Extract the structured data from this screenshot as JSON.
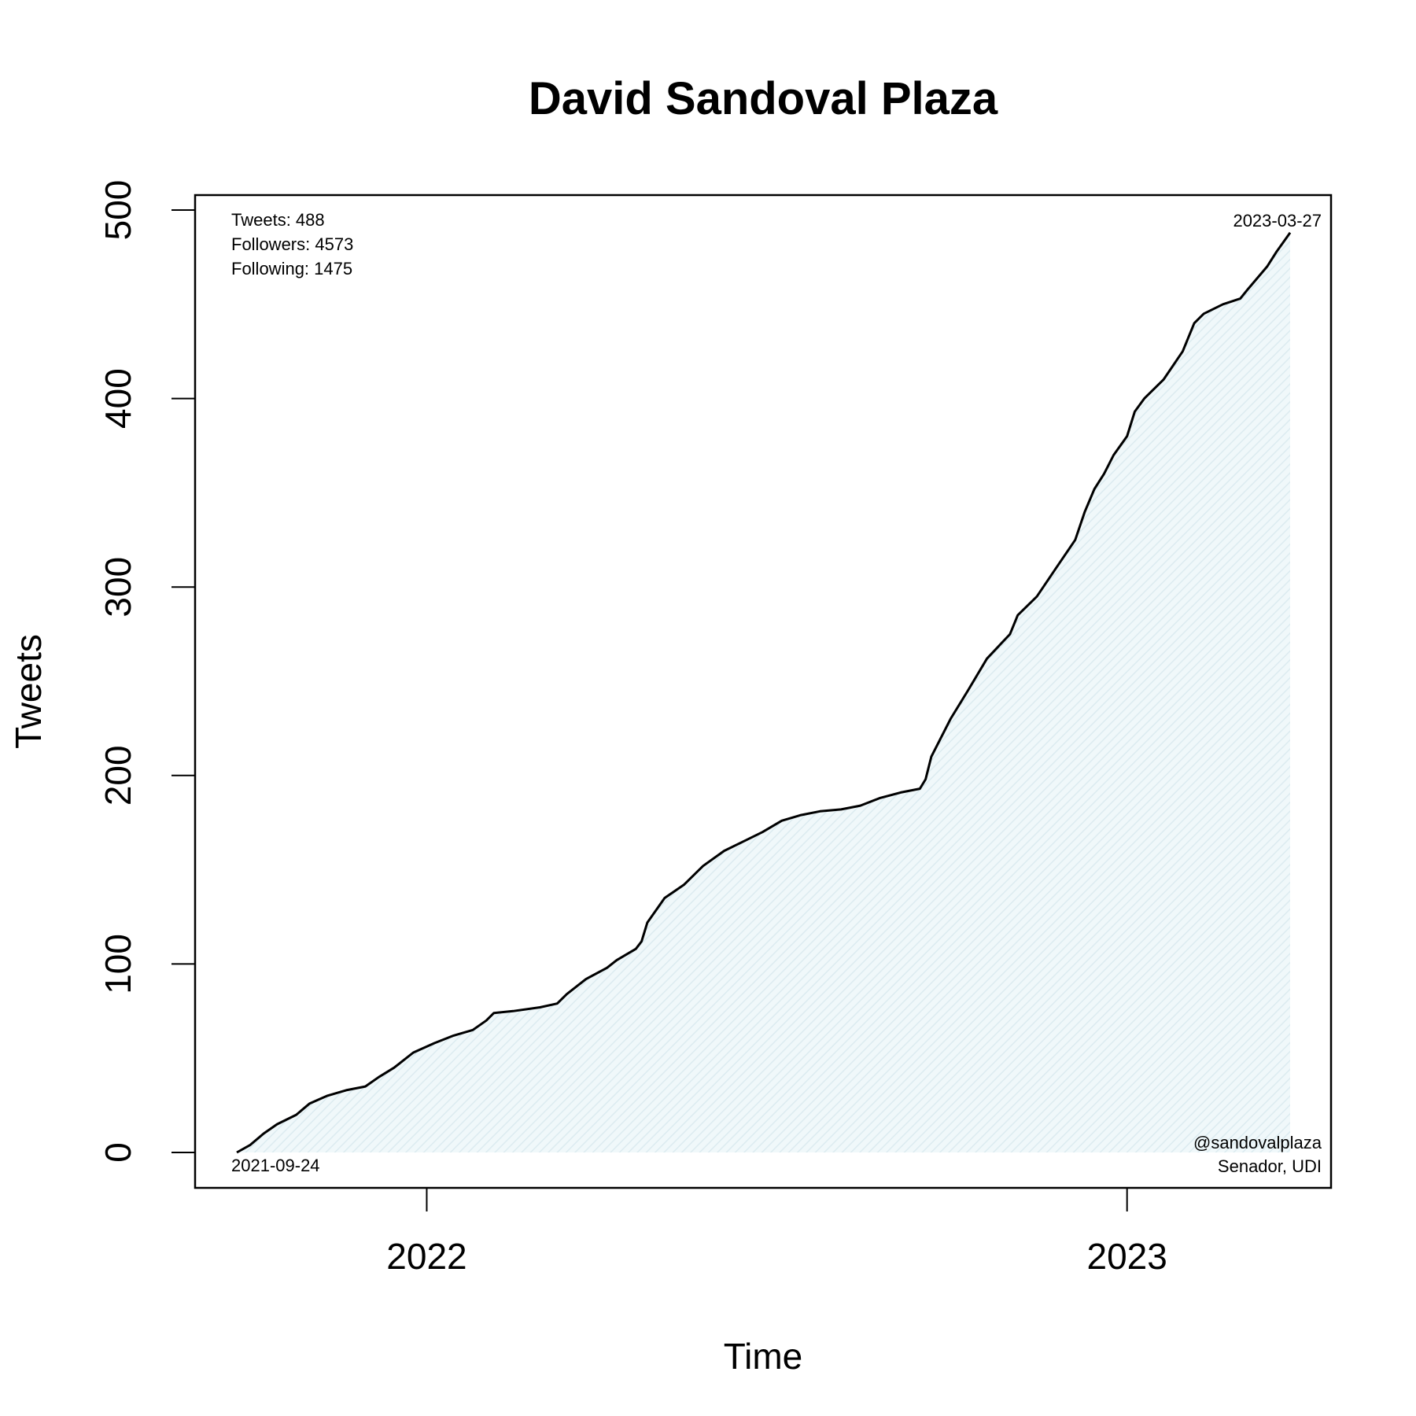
{
  "chart_data": {
    "type": "area",
    "title": "David Sandoval Plaza",
    "xlabel": "Time",
    "ylabel": "Tweets",
    "x_range": [
      "2021-09-24",
      "2023-03-27"
    ],
    "ylim": [
      0,
      500
    ],
    "y_ticks": [
      0,
      100,
      200,
      300,
      400,
      500
    ],
    "x_ticks": [
      {
        "label": "2022",
        "date": "2022-01-01"
      },
      {
        "label": "2023",
        "date": "2023-01-01"
      }
    ],
    "grid": false,
    "colors": {
      "line": "#000000",
      "fill": "#f0f8fa",
      "hatch": "#dcebf0"
    },
    "series": [
      {
        "points": [
          [
            "2021-09-24",
            0
          ],
          [
            "2021-10-01",
            4
          ],
          [
            "2021-10-08",
            10
          ],
          [
            "2021-10-15",
            15
          ],
          [
            "2021-10-25",
            20
          ],
          [
            "2021-11-01",
            26
          ],
          [
            "2021-11-10",
            30
          ],
          [
            "2021-11-20",
            33
          ],
          [
            "2021-11-30",
            35
          ],
          [
            "2021-12-07",
            40
          ],
          [
            "2021-12-15",
            45
          ],
          [
            "2021-12-25",
            53
          ],
          [
            "2022-01-05",
            58
          ],
          [
            "2022-01-15",
            62
          ],
          [
            "2022-01-25",
            65
          ],
          [
            "2022-02-01",
            70
          ],
          [
            "2022-02-05",
            74
          ],
          [
            "2022-02-15",
            75
          ],
          [
            "2022-03-01",
            77
          ],
          [
            "2022-03-10",
            79
          ],
          [
            "2022-03-15",
            84
          ],
          [
            "2022-03-25",
            92
          ],
          [
            "2022-04-05",
            98
          ],
          [
            "2022-04-10",
            102
          ],
          [
            "2022-04-20",
            108
          ],
          [
            "2022-04-23",
            112
          ],
          [
            "2022-04-26",
            122
          ],
          [
            "2022-05-05",
            135
          ],
          [
            "2022-05-15",
            142
          ],
          [
            "2022-05-25",
            152
          ],
          [
            "2022-06-05",
            160
          ],
          [
            "2022-06-15",
            165
          ],
          [
            "2022-06-25",
            170
          ],
          [
            "2022-07-05",
            176
          ],
          [
            "2022-07-15",
            179
          ],
          [
            "2022-07-25",
            181
          ],
          [
            "2022-08-05",
            182
          ],
          [
            "2022-08-15",
            184
          ],
          [
            "2022-08-25",
            188
          ],
          [
            "2022-09-05",
            191
          ],
          [
            "2022-09-15",
            193
          ],
          [
            "2022-09-18",
            198
          ],
          [
            "2022-09-21",
            210
          ],
          [
            "2022-10-01",
            230
          ],
          [
            "2022-10-10",
            245
          ],
          [
            "2022-10-20",
            262
          ],
          [
            "2022-11-01",
            275
          ],
          [
            "2022-11-05",
            285
          ],
          [
            "2022-11-15",
            295
          ],
          [
            "2022-11-25",
            310
          ],
          [
            "2022-12-05",
            325
          ],
          [
            "2022-12-10",
            340
          ],
          [
            "2022-12-15",
            352
          ],
          [
            "2022-12-20",
            360
          ],
          [
            "2022-12-25",
            370
          ],
          [
            "2023-01-01",
            380
          ],
          [
            "2023-01-05",
            393
          ],
          [
            "2023-01-10",
            400
          ],
          [
            "2023-01-20",
            410
          ],
          [
            "2023-01-30",
            425
          ],
          [
            "2023-02-05",
            440
          ],
          [
            "2023-02-10",
            445
          ],
          [
            "2023-02-20",
            450
          ],
          [
            "2023-03-01",
            453
          ],
          [
            "2023-03-05",
            458
          ],
          [
            "2023-03-15",
            470
          ],
          [
            "2023-03-20",
            478
          ],
          [
            "2023-03-27",
            488
          ]
        ]
      }
    ],
    "annotations": {
      "stats": [
        "Tweets: 488",
        "Followers: 4573",
        "Following: 1475"
      ],
      "start_date": "2021-09-24",
      "end_date": "2023-03-27",
      "handle": "@sandovalplaza",
      "role": "Senador, UDI"
    }
  }
}
